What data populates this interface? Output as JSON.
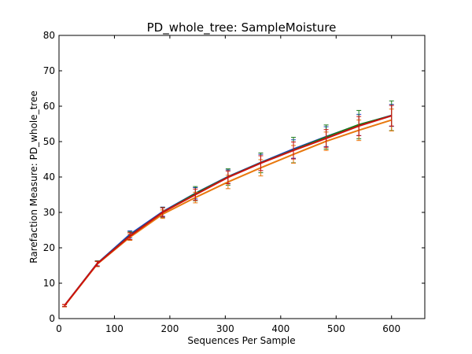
{
  "chart_data": {
    "type": "line",
    "title": "PD_whole_tree: SampleMoisture",
    "xlabel": "Sequences Per Sample",
    "ylabel": "Rarefaction Measure: PD_whole_tree",
    "xlim": [
      0,
      660
    ],
    "ylim": [
      0,
      80
    ],
    "xticks": [
      "0",
      "100",
      "200",
      "300",
      "400",
      "500",
      "600"
    ],
    "yticks": [
      "0",
      "10",
      "20",
      "30",
      "40",
      "50",
      "60",
      "70",
      "80"
    ],
    "x": [
      10,
      69,
      128,
      187,
      246,
      305,
      364,
      423,
      482,
      541,
      600
    ],
    "grid": false,
    "legend": "none",
    "series": [
      {
        "color": "#1f3fbf",
        "values": [
          3.7,
          15.6,
          23.8,
          30.2,
          35.4,
          40.1,
          44.1,
          47.9,
          51.4,
          54.7,
          57.4
        ],
        "errors": [
          0.3,
          0.7,
          1.0,
          1.3,
          1.6,
          1.9,
          2.3,
          2.6,
          2.8,
          3.0,
          3.1
        ]
      },
      {
        "color": "#1a7a1a",
        "values": [
          3.7,
          15.5,
          23.4,
          30.0,
          35.3,
          40.0,
          44.0,
          47.6,
          51.3,
          54.8,
          57.3
        ],
        "errors": [
          0.3,
          0.8,
          1.1,
          1.4,
          2.0,
          2.3,
          2.8,
          3.6,
          3.4,
          4.0,
          4.2
        ]
      },
      {
        "color": "#e8780e",
        "values": [
          3.6,
          15.4,
          23.0,
          29.5,
          34.2,
          38.6,
          42.6,
          46.4,
          50.1,
          53.2,
          56.1
        ],
        "errors": [
          0.3,
          0.7,
          0.9,
          1.2,
          1.5,
          1.9,
          2.3,
          2.5,
          2.6,
          2.9,
          3.1
        ]
      },
      {
        "color": "#cc1111",
        "values": [
          3.7,
          15.5,
          23.3,
          30.0,
          35.0,
          39.9,
          43.9,
          47.5,
          50.9,
          54.4,
          57.3
        ],
        "errors": [
          0.3,
          0.7,
          1.0,
          1.3,
          1.6,
          1.8,
          2.1,
          2.4,
          2.5,
          2.7,
          2.9
        ]
      }
    ]
  }
}
